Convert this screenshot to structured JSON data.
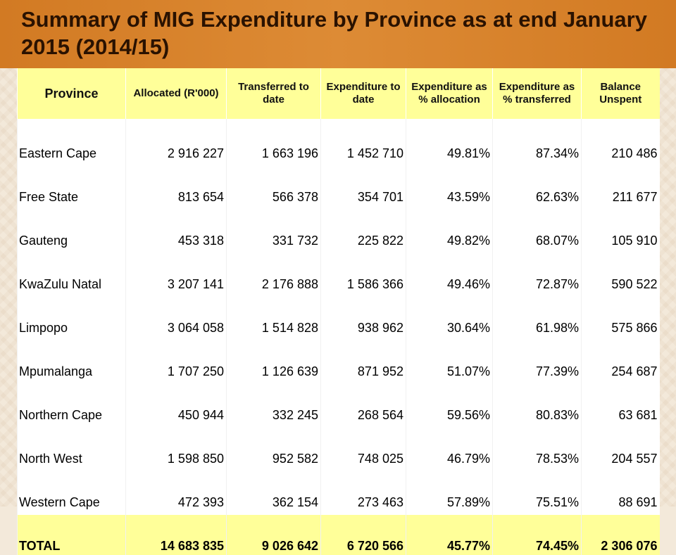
{
  "title": "Summary of MIG Expenditure by Province as at end January 2015 (2014/15)",
  "headers": {
    "province": "Province",
    "allocated": "Allocated (R'000)",
    "transferred": "Transferred to date",
    "expenditure": "Expenditure to date",
    "exp_pct_alloc": "Expenditure as % allocation",
    "exp_pct_transf": "Expenditure as % transferred",
    "balance": "Balance Unspent"
  },
  "rows": [
    {
      "province": "Eastern Cape",
      "allocated": "2 916 227",
      "transferred": "1 663 196",
      "expenditure": "1 452 710",
      "exp_pct_alloc": "49.81%",
      "exp_pct_transf": "87.34%",
      "balance": "210 486"
    },
    {
      "province": "Free State",
      "allocated": "813 654",
      "transferred": "566 378",
      "expenditure": "354 701",
      "exp_pct_alloc": "43.59%",
      "exp_pct_transf": "62.63%",
      "balance": "211 677"
    },
    {
      "province": "Gauteng",
      "allocated": "453 318",
      "transferred": "331 732",
      "expenditure": "225 822",
      "exp_pct_alloc": "49.82%",
      "exp_pct_transf": "68.07%",
      "balance": "105 910"
    },
    {
      "province": "KwaZulu Natal",
      "allocated": "3 207 141",
      "transferred": "2 176 888",
      "expenditure": "1 586 366",
      "exp_pct_alloc": "49.46%",
      "exp_pct_transf": "72.87%",
      "balance": "590 522"
    },
    {
      "province": "Limpopo",
      "allocated": "3 064 058",
      "transferred": "1 514 828",
      "expenditure": "938 962",
      "exp_pct_alloc": "30.64%",
      "exp_pct_transf": "61.98%",
      "balance": "575 866"
    },
    {
      "province": "Mpumalanga",
      "allocated": "1 707 250",
      "transferred": "1 126 639",
      "expenditure": "871 952",
      "exp_pct_alloc": "51.07%",
      "exp_pct_transf": "77.39%",
      "balance": "254 687"
    },
    {
      "province": "Northern Cape",
      "allocated": "450 944",
      "transferred": "332 245",
      "expenditure": "268 564",
      "exp_pct_alloc": "59.56%",
      "exp_pct_transf": "80.83%",
      "balance": "63 681"
    },
    {
      "province": "North West",
      "allocated": "1 598 850",
      "transferred": "952 582",
      "expenditure": "748 025",
      "exp_pct_alloc": "46.79%",
      "exp_pct_transf": "78.53%",
      "balance": "204 557"
    },
    {
      "province": "Western Cape",
      "allocated": "472 393",
      "transferred": "362 154",
      "expenditure": "273 463",
      "exp_pct_alloc": "57.89%",
      "exp_pct_transf": "75.51%",
      "balance": "88 691"
    }
  ],
  "total": {
    "province": "TOTAL",
    "allocated": "14 683 835",
    "transferred": "9 026 642",
    "expenditure": "6 720 566",
    "exp_pct_alloc": "45.77%",
    "exp_pct_transf": "74.45%",
    "balance": "2 306 076"
  },
  "colors": {
    "title_bar": "#d9852f",
    "header_fill": "#ffff99",
    "title_text": "#2a1200"
  }
}
